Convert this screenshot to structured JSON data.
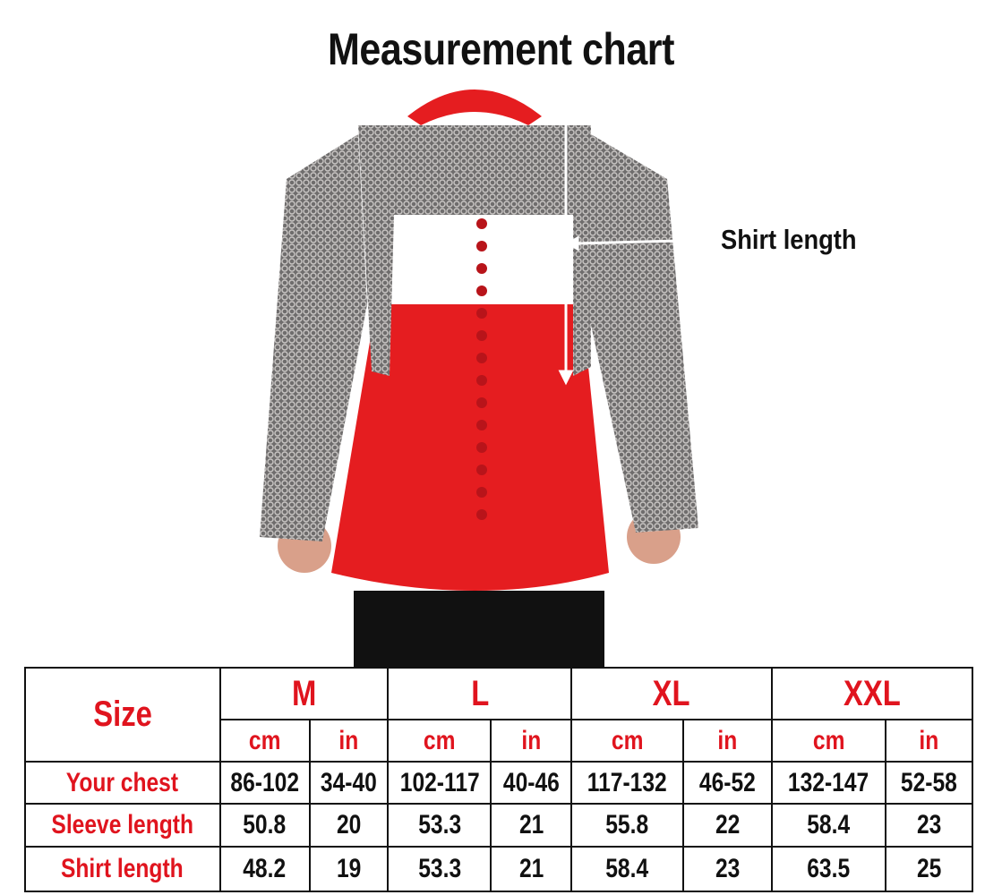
{
  "title": "Measurement chart",
  "annotation": "Shirt length",
  "colors": {
    "label_red": "#e0141e",
    "gambeson_red": "#e51d20",
    "mail_grey": "#7d7b7b"
  },
  "table": {
    "corner_label": "Size",
    "sizes": [
      "M",
      "L",
      "XL",
      "XXL"
    ],
    "units": [
      "cm",
      "in"
    ],
    "rows": [
      {
        "label": "Your chest",
        "values": [
          "86-102",
          "34-40",
          "102-117",
          "40-46",
          "117-132",
          "46-52",
          "132-147",
          "52-58"
        ]
      },
      {
        "label": "Sleeve length",
        "values": [
          "50.8",
          "20",
          "53.3",
          "21",
          "55.8",
          "22",
          "58.4",
          "23"
        ]
      },
      {
        "label": "Shirt length",
        "values": [
          "48.2",
          "19",
          "53.3",
          "21",
          "58.4",
          "23",
          "63.5",
          "25"
        ]
      }
    ]
  }
}
